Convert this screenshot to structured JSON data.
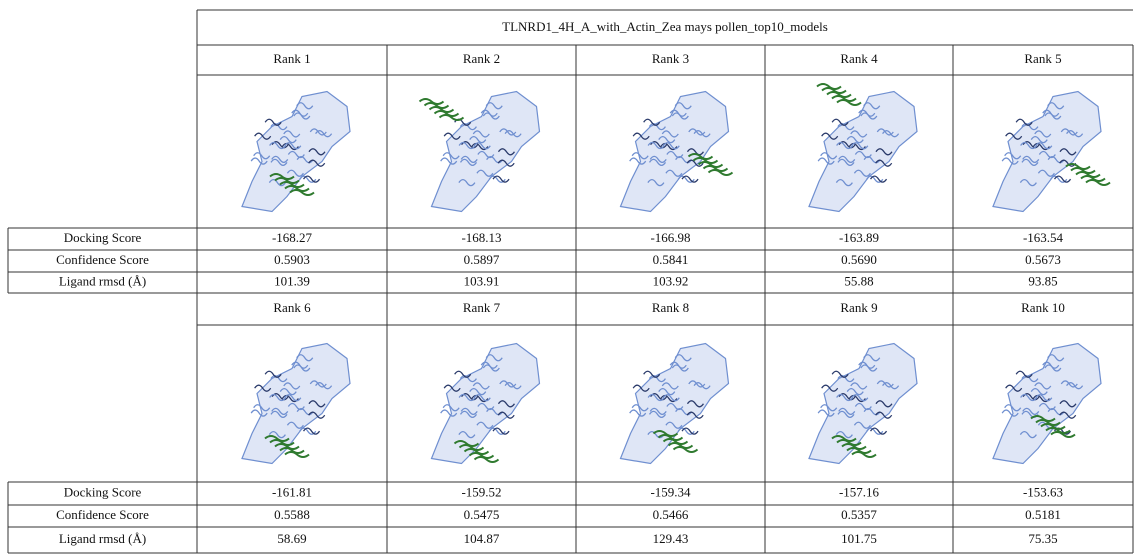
{
  "table": {
    "title": "TLNRD1_4H_A_with_Actin_Zea mays pollen_top10_models",
    "row_labels": [
      "Docking Score",
      "Confidence Score",
      "Ligand rmsd (Å)"
    ],
    "blocks": [
      {
        "ranks": [
          "Rank 1",
          "Rank 2",
          "Rank 3",
          "Rank 4",
          "Rank 5"
        ],
        "rows": [
          [
            "-168.27",
            "-168.13",
            "-166.98",
            "-163.89",
            "-163.54"
          ],
          [
            "0.5903",
            "0.5897",
            "0.5841",
            "0.5690",
            "0.5673"
          ],
          [
            "101.39",
            "103.91",
            "103.92",
            "55.88",
            "93.85"
          ]
        ]
      },
      {
        "ranks": [
          "Rank 6",
          "Rank 7",
          "Rank 8",
          "Rank 9",
          "Rank 10"
        ],
        "rows": [
          [
            "-161.81",
            "-159.52",
            "-159.34",
            "-157.16",
            "-153.63"
          ],
          [
            "0.5588",
            "0.5475",
            "0.5466",
            "0.5357",
            "0.5181"
          ],
          [
            "58.69",
            "104.87",
            "129.43",
            "101.75",
            "75.35"
          ]
        ]
      }
    ]
  }
}
